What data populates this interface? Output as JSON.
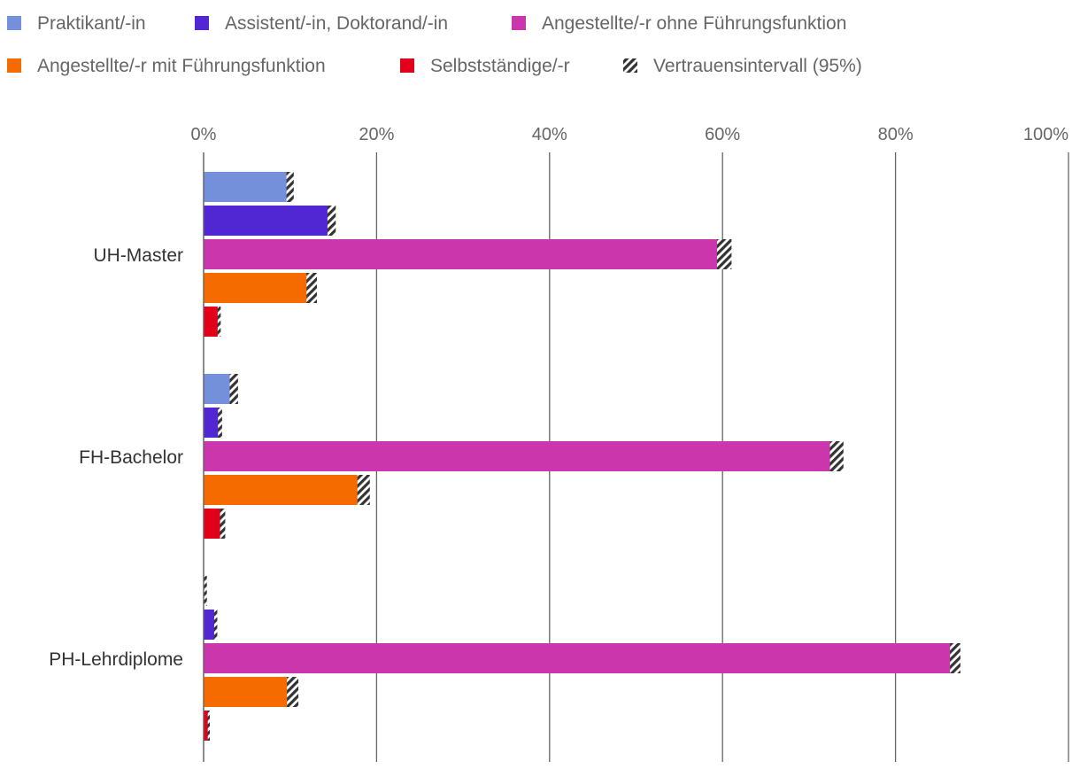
{
  "chart_data": {
    "type": "bar",
    "orientation": "horizontal",
    "categories": [
      "UH-Master",
      "FH-Bachelor",
      "PH-Lehrdiplome"
    ],
    "series": [
      {
        "name": "Praktikant/-in",
        "color": "#7490DB",
        "values": [
          10.0,
          3.5,
          0.2
        ],
        "ci_width": [
          0.7,
          0.8,
          0.3
        ]
      },
      {
        "name": "Assistent/-in, Doktorand/-in",
        "color": "#5027D3",
        "values": [
          14.8,
          1.9,
          1.4
        ],
        "ci_width": [
          0.8,
          0.4,
          0.3
        ]
      },
      {
        "name": "Angestellte/-r ohne Führungsfunktion",
        "color": "#CC36AC",
        "values": [
          60.2,
          73.2,
          86.9
        ],
        "ci_width": [
          1.4,
          1.3,
          1.0
        ]
      },
      {
        "name": "Angestellte/-r mit Führungsfunktion",
        "color": "#F56B00",
        "values": [
          12.5,
          18.5,
          10.3
        ],
        "ci_width": [
          1.0,
          1.2,
          1.1
        ]
      },
      {
        "name": "Selbstständige/-r",
        "color": "#E2001A",
        "values": [
          1.8,
          2.2,
          0.6
        ],
        "ci_width": [
          0.3,
          0.5,
          0.2
        ]
      }
    ],
    "ci_legend": {
      "name": "Vertrauensintervall (95%)",
      "colors": [
        "#333333",
        "#ffffff"
      ]
    },
    "xticks": [
      "0%",
      "20%",
      "40%",
      "60%",
      "80%",
      "100%"
    ],
    "xlim": [
      0,
      100
    ],
    "grid": true,
    "legend_position": "top"
  }
}
